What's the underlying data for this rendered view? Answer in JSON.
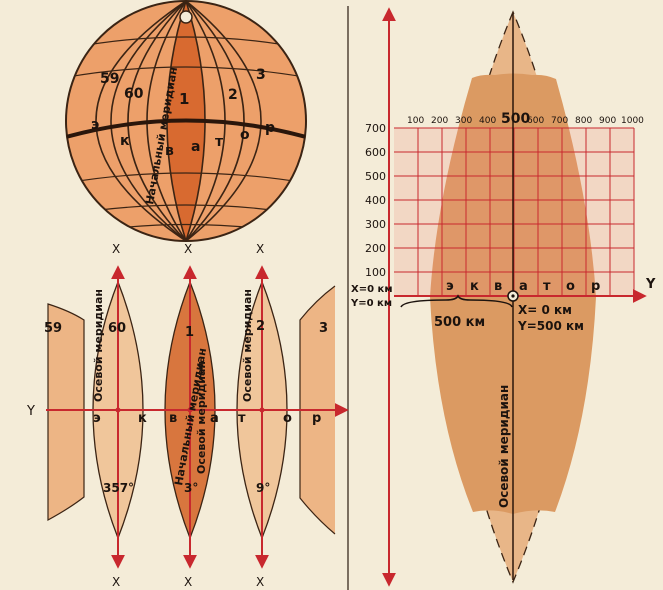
{
  "globe": {
    "zone_numbers": [
      "59",
      "60",
      "1",
      "2",
      "3"
    ],
    "equator_letters": [
      "э",
      "к",
      "в",
      "а",
      "т",
      "о",
      "р"
    ],
    "prime_meridian_label": "Начальный меридиан"
  },
  "zones_strip": {
    "x_axis_label": "X",
    "y_axis_label": "Y",
    "zone_numbers": [
      "59",
      "60",
      "1",
      "2",
      "3"
    ],
    "axial_meridian_label": "Осевой меридиан",
    "prime_meridian_label": "Начальный меридиан",
    "equator_letters": [
      "э",
      "к",
      "в",
      "а",
      "т",
      "о",
      "р"
    ],
    "longitudes": [
      "357°",
      "3°",
      "9°"
    ]
  },
  "zone_detail": {
    "y_axis_label": "Y",
    "x_ticks": [
      "100",
      "200",
      "300",
      "400",
      "500",
      "600",
      "700",
      "800",
      "900",
      "1000"
    ],
    "y_ticks": [
      "700",
      "600",
      "500",
      "400",
      "300",
      "200",
      "100"
    ],
    "origin_x": "X=0 км",
    "origin_y": "Y=0 км",
    "offset_label": "500 км",
    "center_x": "X= 0 км",
    "center_y": "Y=500 км",
    "equator_letters": [
      "э",
      "к",
      "в",
      "а",
      "т",
      "о",
      "р"
    ],
    "axial_meridian_label": "Осевой меридиан"
  },
  "colors": {
    "background": "#f4ecd8",
    "zone_fill": "#e9b27f",
    "zone_fill_dark": "#d8763e",
    "axis_red": "#c8282e"
  }
}
